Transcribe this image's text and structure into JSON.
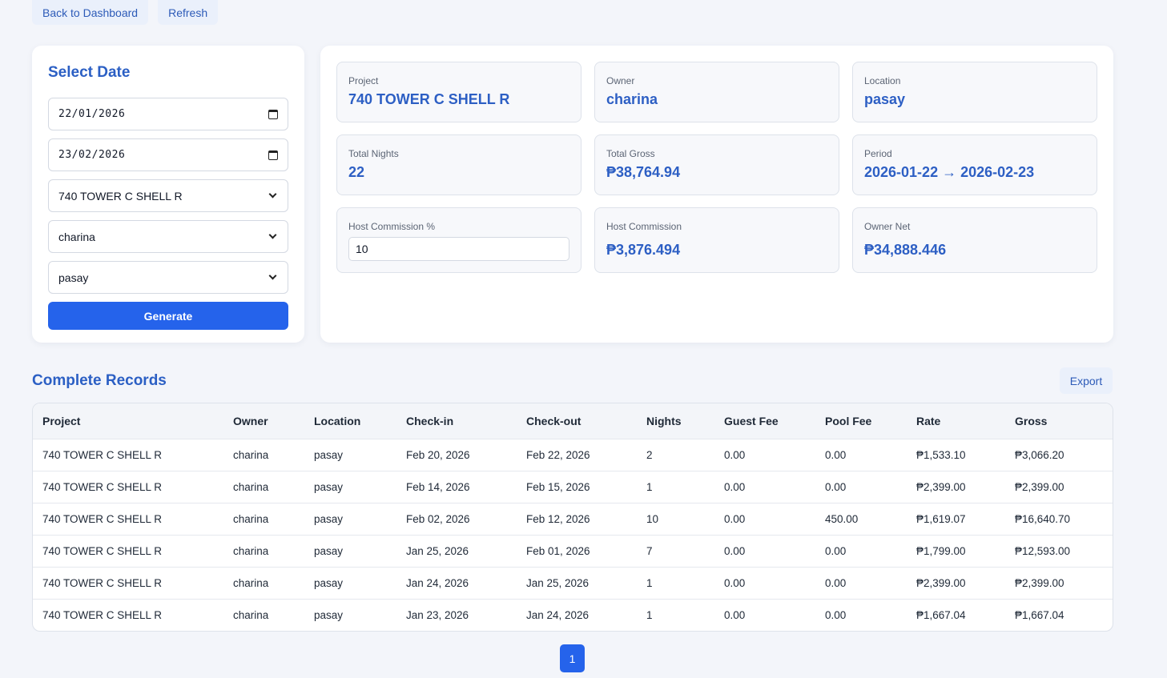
{
  "nav": {
    "back_label": "Back to Dashboard",
    "refresh_label": "Refresh"
  },
  "filters": {
    "title": "Select Date",
    "start_date": "22/01/2026",
    "end_date": "23/02/2026",
    "project": "740 TOWER C SHELL R",
    "owner": "charina",
    "location": "pasay",
    "generate_label": "Generate"
  },
  "summary": {
    "project": {
      "label": "Project",
      "value": "740 TOWER C SHELL R"
    },
    "owner": {
      "label": "Owner",
      "value": "charina"
    },
    "location": {
      "label": "Location",
      "value": "pasay"
    },
    "total_nights": {
      "label": "Total Nights",
      "value": "22"
    },
    "total_gross": {
      "label": "Total Gross",
      "value": "₱38,764.94"
    },
    "period": {
      "label": "Period",
      "value": "2026-01-22 → 2026-02-23"
    },
    "host_commission_pct": {
      "label": "Host Commission %",
      "value": "10"
    },
    "host_commission": {
      "label": "Host Commission",
      "value": "₱3,876.494"
    },
    "owner_net": {
      "label": "Owner Net",
      "value": "₱34,888.446"
    }
  },
  "records": {
    "title": "Complete Records",
    "export_label": "Export",
    "columns": [
      "Project",
      "Owner",
      "Location",
      "Check-in",
      "Check-out",
      "Nights",
      "Guest Fee",
      "Pool Fee",
      "Rate",
      "Gross"
    ],
    "rows": [
      [
        "740 TOWER C SHELL R",
        "charina",
        "pasay",
        "Feb 20, 2026",
        "Feb 22, 2026",
        "2",
        "0.00",
        "0.00",
        "₱1,533.10",
        "₱3,066.20"
      ],
      [
        "740 TOWER C SHELL R",
        "charina",
        "pasay",
        "Feb 14, 2026",
        "Feb 15, 2026",
        "1",
        "0.00",
        "0.00",
        "₱2,399.00",
        "₱2,399.00"
      ],
      [
        "740 TOWER C SHELL R",
        "charina",
        "pasay",
        "Feb 02, 2026",
        "Feb 12, 2026",
        "10",
        "0.00",
        "450.00",
        "₱1,619.07",
        "₱16,640.70"
      ],
      [
        "740 TOWER C SHELL R",
        "charina",
        "pasay",
        "Jan 25, 2026",
        "Feb 01, 2026",
        "7",
        "0.00",
        "0.00",
        "₱1,799.00",
        "₱12,593.00"
      ],
      [
        "740 TOWER C SHELL R",
        "charina",
        "pasay",
        "Jan 24, 2026",
        "Jan 25, 2026",
        "1",
        "0.00",
        "0.00",
        "₱2,399.00",
        "₱2,399.00"
      ],
      [
        "740 TOWER C SHELL R",
        "charina",
        "pasay",
        "Jan 23, 2026",
        "Jan 24, 2026",
        "1",
        "0.00",
        "0.00",
        "₱1,667.04",
        "₱1,667.04"
      ]
    ]
  },
  "pagination": {
    "current": "1"
  },
  "colors": {
    "accent": "#2563eb",
    "heading": "#2b5fc4",
    "background": "#f3f5fa"
  }
}
